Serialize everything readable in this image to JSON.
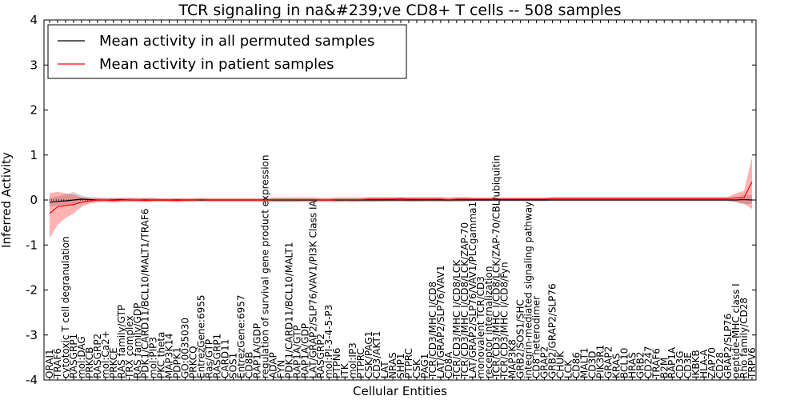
{
  "chart_data": {
    "type": "line",
    "title": "TCR signaling in na&#239;ve CD8+ T cells -- 508 samples",
    "xlabel": "Cellular Entities",
    "ylabel": "Inferred Activity",
    "ylim": [
      -4,
      4
    ],
    "yticks": [
      "-4",
      "-3",
      "-2",
      "-1",
      "0",
      "1",
      "2",
      "3",
      "4"
    ],
    "legend": {
      "position": "top-left",
      "entries": [
        {
          "label": "Mean activity in all permuted samples",
          "color": "#000000"
        },
        {
          "label": "Mean activity in patient samples",
          "color": "#ff0000"
        }
      ]
    },
    "categories": [
      "ORAI1",
      "TRAF6",
      "cytotoxic T cell degranulation",
      "RASGRP1",
      "mol:DAG",
      "PRKCB",
      "RASGRP2",
      "mol:Ca2+",
      "PRKCE",
      "RAS family/GTP",
      "TRX complex",
      "RAS family/GDP",
      "PDK1/CARD11/BCL10/MALT1/TRAF6",
      "mol:PIP3",
      "PKC theta",
      "MAP3K14",
      "PDPK1",
      "GO:0035030",
      "PRKCQ",
      "EntrezGene:6955",
      "Ras/GTP",
      "RASGRP1",
      "CARD11",
      "SOS1",
      "EntrezGene:6957",
      "CD8B",
      "RAP1A/GDP",
      "regulation of survival gene product expression",
      "ADAP",
      "FYN",
      "PDK1/CARD11/BCL10/MALT1",
      "RAP1A/GTP",
      "RAP1A/GDP",
      "LAT/GRAP2/SLP76/VAV1/PI3K Class IA",
      "RASGRP2",
      "mol:PI-3-4-5-P3",
      "PTPN6",
      "ITK",
      "mol:IP3",
      "PTPRC",
      "CSK/PAG1",
      "CD3/AKT1",
      "LAT",
      "NRAS",
      "SHP1",
      "PTPRC",
      "CSK",
      "PAG1",
      "TCR/CD3/MHC I/CD8",
      "LAT/GRAP2/SLP76/VAV1",
      "CD8A",
      "TCR/CD3/MHC I/CD8/LCK",
      "TCR/CD3/MHC I/CD8/LCK/ZAP-70",
      "LAT/GRAP2/SLP76/VAV1/PLCgamma1",
      "monovalent TCR/CD3",
      "receptor internalization",
      "TCR/CD3/MHC I/CD8/LCK/ZAP-70/CBL/ubiquitin",
      "TCR/CD3/MHC I/CD8/Fyn",
      "MAP3K8",
      "GRB2/SOS1/SHC",
      "integrin-mediated signaling pathway",
      "CD8 heterodimer",
      "GRAP2",
      "GRB2/GRAP2/SLP76",
      "CHUK",
      "LCK",
      "CD86",
      "MALT1",
      "CD3D",
      "PIK3R1",
      "GRAP2",
      "KRAS",
      "BCL10",
      "HRAS",
      "GRB2",
      "CD247",
      "TRAF6",
      "B2M",
      "RAP1A",
      "CD3G",
      "CD3E",
      "IKBKB",
      "HLA-A",
      "ZAP70",
      "CD28",
      "GRAP2/SLP76",
      "peptide-MHC class I",
      "Rho family/CD28",
      "TRPV6"
    ],
    "series": [
      {
        "name": "Mean activity in all permuted samples",
        "color": "#000000",
        "values": [
          -0.05,
          -0.03,
          -0.02,
          0,
          0.02,
          0.01,
          0,
          0,
          0,
          0.01,
          0,
          0,
          0,
          0,
          0,
          0,
          0,
          0,
          0,
          0,
          0,
          0,
          0,
          0,
          0,
          0,
          0,
          0,
          0,
          0,
          0,
          0,
          0,
          0,
          0,
          0,
          0,
          0,
          0,
          0,
          0,
          0,
          0,
          0,
          0,
          0,
          0,
          0,
          0,
          0,
          0,
          0,
          0,
          0,
          0,
          0,
          0,
          0,
          0,
          0,
          0,
          0,
          0,
          0,
          0,
          0,
          0,
          0,
          0,
          0,
          0,
          0,
          0,
          0,
          0,
          0,
          0,
          0,
          0,
          0,
          0,
          0,
          0,
          0,
          0,
          0,
          0,
          0.01,
          0
        ],
        "band_low": [
          -0.15,
          -0.12,
          -0.1,
          -0.08,
          -0.06,
          -0.05,
          -0.04,
          -0.04,
          -0.03,
          -0.03,
          -0.03,
          -0.03,
          -0.03,
          -0.03,
          -0.03,
          -0.03,
          -0.03,
          -0.03,
          -0.03,
          -0.03,
          -0.03,
          -0.03,
          -0.03,
          -0.03,
          -0.03,
          -0.03,
          -0.03,
          -0.03,
          -0.03,
          -0.03,
          -0.03,
          -0.03,
          -0.03,
          -0.03,
          -0.03,
          -0.03,
          -0.03,
          -0.03,
          -0.03,
          -0.03,
          -0.03,
          -0.03,
          -0.03,
          -0.03,
          -0.03,
          -0.03,
          -0.03,
          -0.03,
          -0.03,
          -0.03,
          -0.03,
          -0.03,
          -0.03,
          -0.03,
          -0.03,
          -0.03,
          -0.03,
          -0.03,
          -0.03,
          -0.03,
          -0.03,
          -0.03,
          -0.03,
          -0.03,
          -0.03,
          -0.03,
          -0.03,
          -0.03,
          -0.03,
          -0.03,
          -0.03,
          -0.03,
          -0.03,
          -0.03,
          -0.03,
          -0.03,
          -0.03,
          -0.03,
          -0.03,
          -0.03,
          -0.03,
          -0.03,
          -0.03,
          -0.03,
          -0.03,
          -0.03,
          -0.05,
          -0.1,
          -0.08
        ],
        "band_high": [
          0.05,
          0.08,
          0.12,
          0.18,
          0.1,
          0.06,
          0.05,
          0.05,
          0.04,
          0.05,
          0.05,
          0.04,
          0.04,
          0.04,
          0.03,
          0.03,
          0.03,
          0.03,
          0.03,
          0.03,
          0.03,
          0.03,
          0.03,
          0.03,
          0.03,
          0.03,
          0.03,
          0.03,
          0.03,
          0.03,
          0.03,
          0.03,
          0.03,
          0.03,
          0.03,
          0.03,
          0.03,
          0.03,
          0.03,
          0.03,
          0.03,
          0.03,
          0.03,
          0.03,
          0.03,
          0.03,
          0.03,
          0.03,
          0.03,
          0.03,
          0.03,
          0.03,
          0.03,
          0.03,
          0.03,
          0.03,
          0.03,
          0.03,
          0.03,
          0.03,
          0.03,
          0.03,
          0.03,
          0.03,
          0.03,
          0.03,
          0.03,
          0.03,
          0.03,
          0.03,
          0.03,
          0.03,
          0.03,
          0.03,
          0.03,
          0.03,
          0.03,
          0.03,
          0.03,
          0.03,
          0.03,
          0.03,
          0.03,
          0.03,
          0.03,
          0.03,
          0.05,
          0.12,
          0.1
        ]
      },
      {
        "name": "Mean activity in patient samples",
        "color": "#ff0000",
        "values": [
          -0.3,
          -0.15,
          -0.12,
          -0.1,
          -0.05,
          -0.02,
          0,
          0,
          -0.01,
          0,
          0,
          0,
          -0.01,
          0,
          0,
          0,
          -0.01,
          0,
          0,
          0.01,
          0,
          0,
          0,
          0,
          0,
          0,
          0,
          0,
          0.01,
          0.01,
          0.01,
          0.01,
          0.01,
          0.01,
          0,
          0,
          0.01,
          0.01,
          0.01,
          0.01,
          0.02,
          0.02,
          0.02,
          0.02,
          0.03,
          0.02,
          0.02,
          0.02,
          0.02,
          0.02,
          0.01,
          0.02,
          0.02,
          0.02,
          0.02,
          0.02,
          0.02,
          0.02,
          0.02,
          0.02,
          0.02,
          0.02,
          0.02,
          0.03,
          0.03,
          0.03,
          0.03,
          0.03,
          0.03,
          0.03,
          0.03,
          0.03,
          0.03,
          0.03,
          0.03,
          0.03,
          0.03,
          0.03,
          0.03,
          0.03,
          0.03,
          0.03,
          0.03,
          0.03,
          0.03,
          0.03,
          0.05,
          0.05,
          0.4
        ],
        "band_low": [
          -0.85,
          -0.55,
          -0.4,
          -0.3,
          -0.15,
          -0.08,
          -0.05,
          -0.04,
          -0.06,
          -0.04,
          -0.04,
          -0.04,
          -0.05,
          -0.04,
          -0.04,
          -0.04,
          -0.05,
          -0.04,
          -0.04,
          -0.03,
          -0.04,
          -0.04,
          -0.04,
          -0.04,
          -0.04,
          -0.04,
          -0.04,
          -0.04,
          -0.05,
          -0.05,
          -0.05,
          -0.05,
          -0.04,
          -0.05,
          -0.04,
          -0.04,
          -0.05,
          -0.04,
          -0.05,
          -0.04,
          -0.04,
          -0.04,
          -0.03,
          -0.03,
          -0.03,
          -0.04,
          -0.04,
          -0.03,
          -0.03,
          -0.03,
          -0.04,
          -0.03,
          -0.03,
          -0.02,
          -0.02,
          -0.02,
          -0.02,
          -0.02,
          -0.02,
          -0.02,
          -0.02,
          -0.02,
          -0.02,
          -0.01,
          -0.01,
          -0.01,
          -0.01,
          -0.01,
          -0.01,
          -0.01,
          -0.01,
          -0.01,
          -0.01,
          -0.01,
          -0.01,
          -0.01,
          -0.01,
          -0.01,
          -0.01,
          -0.01,
          -0.01,
          -0.01,
          -0.01,
          -0.01,
          -0.01,
          -0.01,
          -0.05,
          -0.08,
          -0.2
        ],
        "band_high": [
          0.15,
          0.18,
          0.15,
          0.12,
          0.06,
          0.05,
          0.05,
          0.04,
          0.05,
          0.05,
          0.05,
          0.05,
          0.05,
          0.05,
          0.04,
          0.04,
          0.04,
          0.04,
          0.04,
          0.05,
          0.04,
          0.04,
          0.04,
          0.04,
          0.04,
          0.04,
          0.04,
          0.04,
          0.06,
          0.06,
          0.06,
          0.06,
          0.06,
          0.06,
          0.05,
          0.05,
          0.06,
          0.06,
          0.06,
          0.06,
          0.07,
          0.07,
          0.07,
          0.07,
          0.07,
          0.07,
          0.07,
          0.07,
          0.07,
          0.07,
          0.06,
          0.07,
          0.07,
          0.06,
          0.06,
          0.06,
          0.06,
          0.06,
          0.06,
          0.06,
          0.06,
          0.06,
          0.06,
          0.07,
          0.07,
          0.07,
          0.07,
          0.07,
          0.07,
          0.07,
          0.07,
          0.07,
          0.07,
          0.07,
          0.07,
          0.07,
          0.07,
          0.07,
          0.07,
          0.07,
          0.07,
          0.07,
          0.07,
          0.07,
          0.07,
          0.07,
          0.15,
          0.2,
          0.95
        ]
      }
    ]
  }
}
